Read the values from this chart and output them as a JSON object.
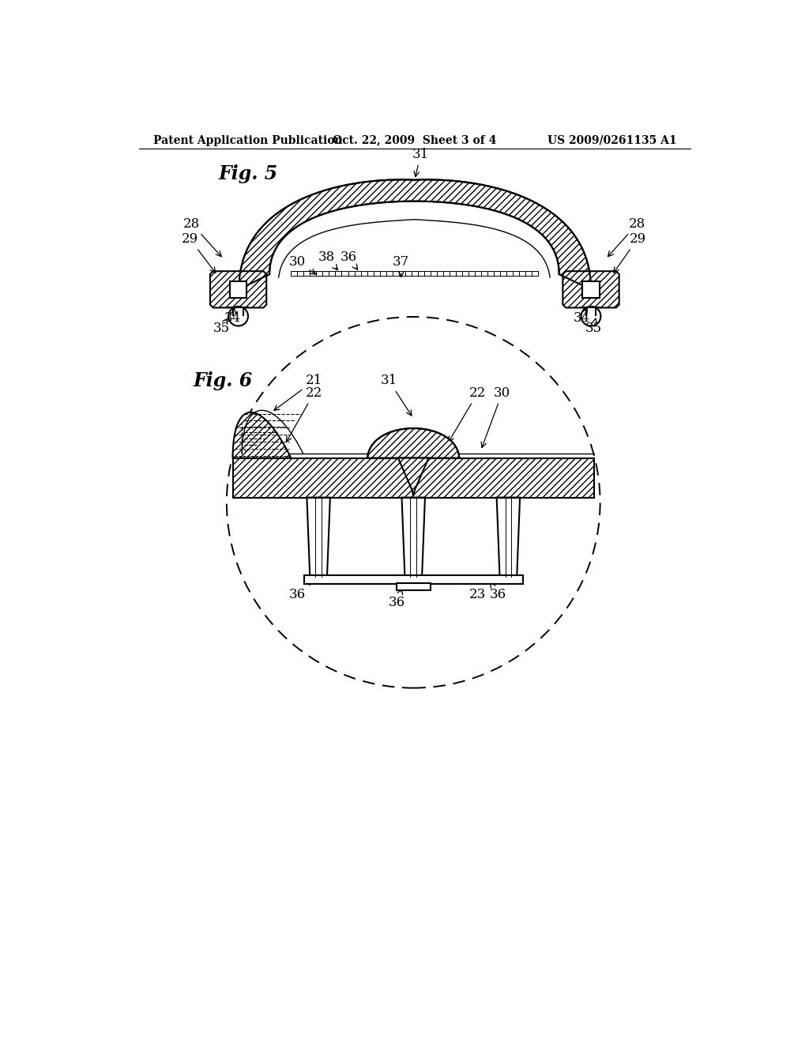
{
  "header_left": "Patent Application Publication",
  "header_center": "Oct. 22, 2009  Sheet 3 of 4",
  "header_right": "US 2009/0261135 A1",
  "fig5_label": "Fig. 5",
  "fig6_label": "Fig. 6",
  "bg_color": "#ffffff",
  "line_color": "#000000"
}
